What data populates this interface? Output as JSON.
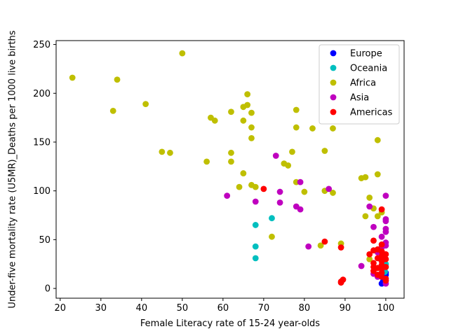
{
  "chart_data": {
    "type": "scatter",
    "title": "",
    "xlabel": "Female Literacy rate of 15-24 year-olds",
    "ylabel": "Under-five mortality rate (U5MR)_Deaths per 1000 live births",
    "xlim": [
      19,
      104.5
    ],
    "ylim": [
      -10,
      254
    ],
    "xticks": [
      20,
      30,
      40,
      50,
      60,
      70,
      80,
      90,
      100
    ],
    "yticks": [
      0,
      50,
      100,
      150,
      200,
      250
    ],
    "grid": false,
    "legend_position": "top-right",
    "series": [
      {
        "name": "Europe",
        "color": "#0000ff",
        "points": [
          [
            99,
            5
          ],
          [
            99.3,
            7
          ],
          [
            99.6,
            9
          ],
          [
            99.8,
            6
          ],
          [
            100,
            8
          ],
          [
            99.5,
            11
          ],
          [
            99.9,
            13
          ],
          [
            100,
            16
          ],
          [
            99.2,
            18
          ],
          [
            99.7,
            20
          ],
          [
            100,
            14
          ],
          [
            99.9,
            10
          ],
          [
            99.6,
            12
          ]
        ]
      },
      {
        "name": "Oceania",
        "color": "#00bfbf",
        "points": [
          [
            68,
            65
          ],
          [
            72,
            72
          ],
          [
            68,
            43
          ],
          [
            68,
            31
          ],
          [
            100,
            22
          ],
          [
            100,
            25
          ],
          [
            99.8,
            17
          ]
        ]
      },
      {
        "name": "Africa",
        "color": "#bfbf00",
        "points": [
          [
            23,
            216
          ],
          [
            34,
            214
          ],
          [
            33,
            182
          ],
          [
            41,
            189
          ],
          [
            50,
            241
          ],
          [
            45,
            140
          ],
          [
            47,
            139
          ],
          [
            56,
            130
          ],
          [
            57,
            175
          ],
          [
            58,
            172
          ],
          [
            62,
            181
          ],
          [
            62,
            139
          ],
          [
            62,
            130
          ],
          [
            64,
            104
          ],
          [
            65,
            186
          ],
          [
            66,
            188
          ],
          [
            66,
            199
          ],
          [
            67,
            180
          ],
          [
            67,
            165
          ],
          [
            67,
            154
          ],
          [
            65,
            172
          ],
          [
            65,
            118
          ],
          [
            67,
            106
          ],
          [
            68,
            104
          ],
          [
            72,
            53
          ],
          [
            75,
            128
          ],
          [
            76,
            126
          ],
          [
            77,
            140
          ],
          [
            78,
            183
          ],
          [
            78,
            165
          ],
          [
            78,
            109
          ],
          [
            80,
            99
          ],
          [
            82,
            164
          ],
          [
            84,
            44
          ],
          [
            85,
            141
          ],
          [
            85,
            100
          ],
          [
            87,
            164
          ],
          [
            87,
            98
          ],
          [
            89,
            46
          ],
          [
            94,
            113
          ],
          [
            95,
            114
          ],
          [
            95,
            74
          ],
          [
            96,
            93
          ],
          [
            96,
            30
          ],
          [
            97,
            82
          ],
          [
            98,
            152
          ],
          [
            98,
            117
          ],
          [
            98,
            74
          ],
          [
            99,
            78
          ],
          [
            98,
            40
          ]
        ]
      },
      {
        "name": "Asia",
        "color": "#bf00bf",
        "points": [
          [
            61,
            95
          ],
          [
            68,
            89
          ],
          [
            73,
            136
          ],
          [
            74,
            99
          ],
          [
            74,
            88
          ],
          [
            78,
            84
          ],
          [
            79,
            81
          ],
          [
            79,
            109
          ],
          [
            81,
            43
          ],
          [
            86,
            102
          ],
          [
            94,
            23
          ],
          [
            96,
            84
          ],
          [
            97,
            63
          ],
          [
            99,
            53
          ],
          [
            100,
            95
          ],
          [
            100,
            71
          ],
          [
            100,
            69
          ],
          [
            100,
            61
          ],
          [
            100,
            58
          ],
          [
            100,
            47
          ],
          [
            100,
            44
          ],
          [
            98,
            12
          ],
          [
            97,
            15
          ],
          [
            99,
            28
          ],
          [
            100,
            5
          ],
          [
            99,
            42
          ],
          [
            98,
            37
          ]
        ]
      },
      {
        "name": "Americas",
        "color": "#ff0000",
        "points": [
          [
            70,
            102
          ],
          [
            85,
            48
          ],
          [
            89,
            42
          ],
          [
            89,
            7
          ],
          [
            89.5,
            9
          ],
          [
            89,
            6
          ],
          [
            96,
            35
          ],
          [
            97,
            39
          ],
          [
            97,
            49
          ],
          [
            98,
            40
          ],
          [
            99,
            81
          ],
          [
            99,
            45
          ],
          [
            99,
            38
          ],
          [
            99,
            33
          ],
          [
            99,
            28
          ],
          [
            99,
            24
          ],
          [
            99,
            20
          ],
          [
            99,
            16
          ],
          [
            98,
            21
          ],
          [
            97,
            18
          ],
          [
            97,
            26
          ],
          [
            98,
            31
          ],
          [
            100,
            35
          ],
          [
            100,
            30
          ],
          [
            100,
            22
          ],
          [
            100,
            10
          ],
          [
            99,
            12
          ],
          [
            98,
            14
          ],
          [
            100,
            8
          ],
          [
            97,
            22
          ]
        ]
      }
    ]
  }
}
